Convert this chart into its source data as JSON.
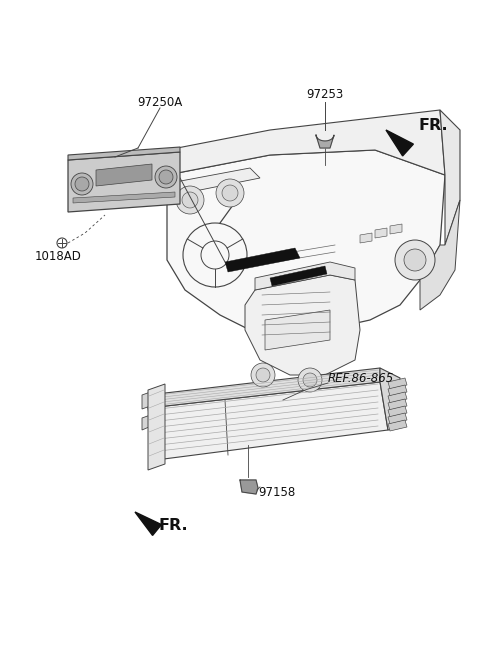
{
  "bg_color": "#ffffff",
  "lc": "#444444",
  "lc_thin": "#666666",
  "label_97250A": "97250A",
  "label_1018AD": "1018AD",
  "label_97253": "97253",
  "label_FR_top": "FR.",
  "label_97158": "97158",
  "label_FR_bottom": "FR.",
  "label_REF": "REF.86-865",
  "fs_label": 8.5,
  "fs_FR": 11.5
}
